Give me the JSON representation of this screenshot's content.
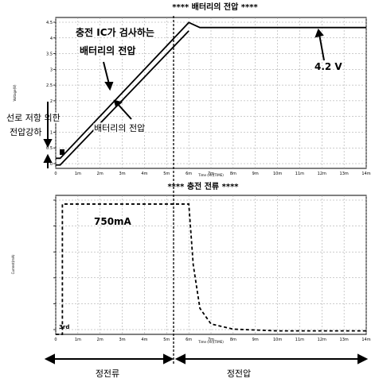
{
  "chart_data": [
    {
      "type": "line",
      "title": "**** 배터리의 전압 ****",
      "ylabel": "Voltage(V)",
      "xlabel": "Time (Hr)(TIME)",
      "y_ticks": [
        "4.5",
        "4",
        "3.5",
        "3",
        "2.5",
        "2",
        "1.5",
        "1",
        "0.5",
        "0"
      ],
      "x_ticks": [
        "0",
        "1m",
        "2m",
        "3m",
        "4m",
        "5m",
        "6m",
        "7m",
        "8m",
        "9m",
        "10m",
        "11m",
        "12m",
        "13m",
        "14m"
      ],
      "ylim": [
        0,
        4.5
      ],
      "xlim": [
        0,
        14
      ],
      "series": [
        {
          "values_x": [
            0,
            0.2,
            6.0,
            6.5,
            14
          ],
          "values_y": [
            0.3,
            0.3,
            4.35,
            4.2,
            4.2
          ]
        },
        {
          "values_x": [
            0,
            0.2,
            6.0
          ],
          "values_y": [
            0.1,
            0.1,
            4.1
          ]
        }
      ],
      "annotations": {
        "ic_sensed": "충전 IC가 검사하는",
        "ic_sensed_2": "배터리의 전압",
        "battery_voltage": "배터리의 전압",
        "voltage_label": "4.2 V",
        "drop_1": "선로 저항 의한",
        "drop_2": "전압강하"
      }
    },
    {
      "type": "line",
      "title": "**** 충전 전류 ****",
      "ylabel": "Current(mA)",
      "xlabel": "Time (Hr)(TIME)",
      "y_ticks": [
        "",
        "",
        "",
        "",
        "",
        ""
      ],
      "x_ticks": [
        "0",
        "1m",
        "2m",
        "3m",
        "4m",
        "5m",
        "6m",
        "7m",
        "8m",
        "9m",
        "10m",
        "11m",
        "12m",
        "13m",
        "14m"
      ],
      "ylim": [
        0,
        800
      ],
      "xlim": [
        0,
        14
      ],
      "series": [
        {
          "values_x": [
            0,
            0.3,
            0.3,
            6.0,
            6.2,
            6.5,
            7,
            8,
            9,
            10,
            11,
            12,
            13,
            14
          ],
          "values_y": [
            0,
            0,
            750,
            750,
            400,
            150,
            60,
            30,
            25,
            20,
            20,
            20,
            20,
            20
          ]
        }
      ],
      "annotations": {
        "current_label": "750mA",
        "start_label": "3rd"
      }
    }
  ],
  "phases": {
    "cc": "정전류",
    "cv": "정전압"
  }
}
